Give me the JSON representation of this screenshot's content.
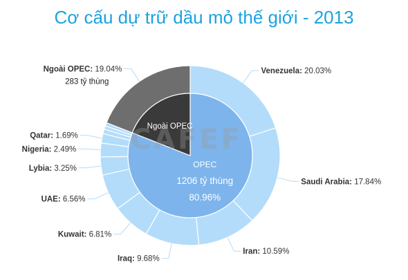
{
  "title": "Cơ cấu  dự trữ dầu mỏ thế giới - 2013",
  "watermark": "CAFEF",
  "chart_data": {
    "type": "pie",
    "title": "Cơ cấu  dự trữ dầu mỏ thế giới - 2013",
    "inner": [
      {
        "name": "OPEC",
        "amount": "1206 tỷ thùng",
        "percent_text": "80.96%",
        "value": 80.96,
        "color": "#7db4ec"
      },
      {
        "name": "Ngoài OPEC",
        "value": 19.04,
        "color": "#3a3a3a"
      }
    ],
    "outer": [
      {
        "name": "Venezuela",
        "value": 20.03,
        "percent_text": "20.03%",
        "color": "#b3dcfa"
      },
      {
        "name": "Saudi Arabia",
        "value": 17.84,
        "percent_text": "17.84%",
        "color": "#b3dcfa"
      },
      {
        "name": "Iran",
        "value": 10.59,
        "percent_text": "10.59%",
        "color": "#b3dcfa"
      },
      {
        "name": "Iraq",
        "value": 9.68,
        "percent_text": "9.68%",
        "color": "#b3dcfa"
      },
      {
        "name": "Kuwait",
        "value": 6.81,
        "percent_text": "6.81%",
        "color": "#b3dcfa"
      },
      {
        "name": "UAE",
        "value": 6.56,
        "percent_text": "6.56%",
        "color": "#b3dcfa"
      },
      {
        "name": "Lybia",
        "value": 3.25,
        "percent_text": "3.25%",
        "color": "#b3dcfa"
      },
      {
        "name": "Nigeria",
        "value": 2.49,
        "percent_text": "2.49%",
        "color": "#b3dcfa"
      },
      {
        "name": "Qatar",
        "value": 1.69,
        "percent_text": "1.69%",
        "color": "#b3dcfa"
      },
      {
        "name": "",
        "value": 0.82,
        "percent_text": "",
        "color": "#b3dcfa"
      },
      {
        "name": "",
        "value": 0.6,
        "percent_text": "",
        "color": "#b3dcfa"
      },
      {
        "name": "",
        "value": 0.6,
        "percent_text": "",
        "color": "#b3dcfa"
      },
      {
        "name": "Ngoài OPEC",
        "value": 19.04,
        "percent_text": "19.04%",
        "amount": "283 tỷ thùng",
        "color": "#6e6e6e"
      }
    ]
  }
}
